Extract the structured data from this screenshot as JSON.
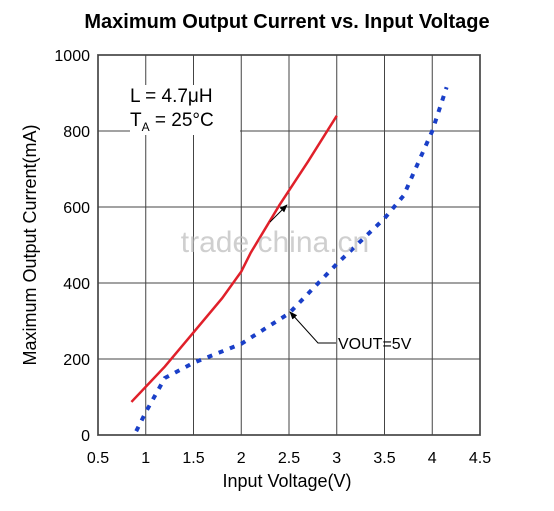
{
  "chart_data": {
    "type": "line",
    "title": "Maximum Output Current vs. Input Voltage",
    "x_label": "Input Voltage(V)",
    "y_label": "Maximum Output Current(mA)",
    "xlim": [
      0.5,
      4.5
    ],
    "xticks": [
      0.5,
      1,
      1.5,
      2,
      2.5,
      3,
      3.5,
      4,
      4.5
    ],
    "ylim": [
      0,
      1000
    ],
    "yticks": [
      0,
      200,
      400,
      600,
      800,
      1000
    ],
    "grid": true,
    "series": [
      {
        "color": "#e0202a",
        "style": "solid",
        "x": [
          0.85,
          1.2,
          1.5,
          1.8,
          2.0,
          2.1,
          2.4,
          2.7,
          3.0
        ],
        "values": [
          87,
          180,
          270,
          360,
          430,
          480,
          605,
          720,
          840
        ]
      },
      {
        "color": "#1a3fc8",
        "style": "dotted",
        "x": [
          0.9,
          1.0,
          1.2,
          1.5,
          2.0,
          2.5,
          3.0,
          3.5,
          3.7,
          4.0,
          4.15
        ],
        "values": [
          10,
          60,
          150,
          190,
          240,
          320,
          450,
          570,
          630,
          800,
          915
        ]
      }
    ],
    "annotations": {
      "inductor": "L = 4.7μH",
      "temp_symbol": "T",
      "temp_sub": "A",
      "temp_value": " = 25°C",
      "vout": "VOUT=5V"
    },
    "watermark": "trade china.cn"
  }
}
